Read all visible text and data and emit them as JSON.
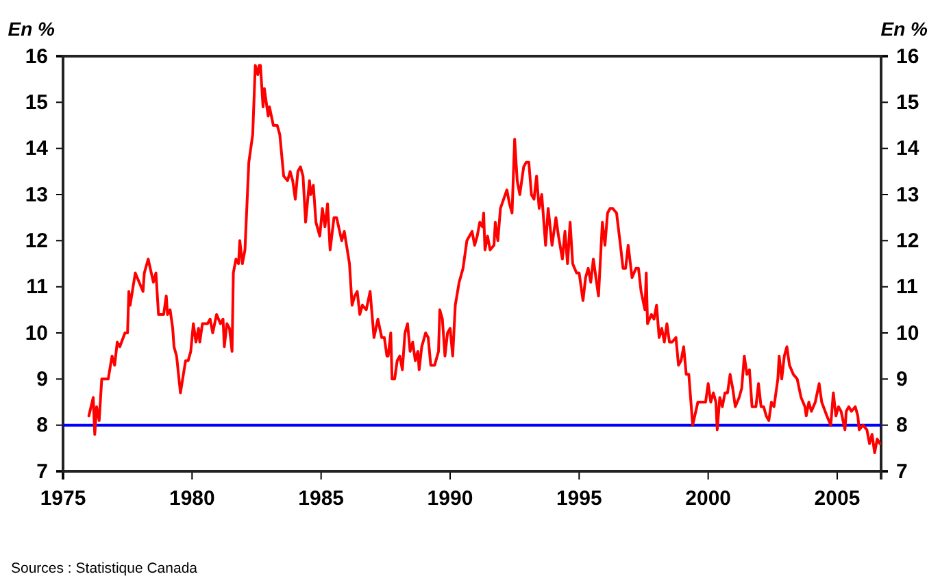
{
  "chart_data": {
    "type": "line",
    "ylabel": "En %",
    "y2label": "En %",
    "xlim": [
      1975,
      2006.7
    ],
    "xticks": [
      1975,
      1980,
      1985,
      1990,
      1995,
      2000,
      2005
    ],
    "ylim": [
      7,
      16
    ],
    "yticks": [
      7,
      8,
      9,
      10,
      11,
      12,
      13,
      14,
      15,
      16
    ],
    "y2lim": [
      7,
      16
    ],
    "y2ticks": [
      7,
      8,
      9,
      10,
      11,
      12,
      13,
      14,
      15,
      16
    ],
    "marker": "none",
    "line_style": "solid",
    "ref_lines": [
      {
        "axis": "y",
        "value": 8,
        "label": null,
        "color": "#0000ff"
      }
    ],
    "annotations": [
      "Sources : Statistique Canada"
    ],
    "series": [
      {
        "color": "#ff0000",
        "x": [
          1976.0,
          1976.17,
          1976.23,
          1976.3,
          1976.4,
          1976.5,
          1976.75,
          1976.9,
          1977.0,
          1977.1,
          1977.2,
          1977.4,
          1977.5,
          1977.55,
          1977.6,
          1977.8,
          1978.1,
          1978.15,
          1978.3,
          1978.5,
          1978.6,
          1978.7,
          1978.9,
          1979.0,
          1979.05,
          1979.15,
          1979.25,
          1979.3,
          1979.4,
          1979.55,
          1979.75,
          1979.85,
          1979.95,
          1980.05,
          1980.15,
          1980.25,
          1980.3,
          1980.4,
          1980.6,
          1980.7,
          1980.8,
          1980.95,
          1981.1,
          1981.2,
          1981.25,
          1981.35,
          1981.45,
          1981.55,
          1981.6,
          1981.7,
          1981.8,
          1981.85,
          1981.95,
          1982.05,
          1982.2,
          1982.35,
          1982.45,
          1982.55,
          1982.6,
          1982.65,
          1982.75,
          1982.8,
          1982.95,
          1983.0,
          1983.15,
          1983.3,
          1983.4,
          1983.55,
          1983.7,
          1983.8,
          1983.9,
          1984.0,
          1984.1,
          1984.2,
          1984.3,
          1984.4,
          1984.55,
          1984.6,
          1984.7,
          1984.8,
          1984.95,
          1985.05,
          1985.15,
          1985.25,
          1985.35,
          1985.5,
          1985.6,
          1985.8,
          1985.9,
          1986.1,
          1986.2,
          1986.3,
          1986.4,
          1986.5,
          1986.6,
          1986.75,
          1986.9,
          1987.05,
          1987.2,
          1987.35,
          1987.45,
          1987.55,
          1987.6,
          1987.7,
          1987.75,
          1987.85,
          1987.95,
          1988.05,
          1988.15,
          1988.25,
          1988.35,
          1988.45,
          1988.55,
          1988.65,
          1988.75,
          1988.8,
          1988.9,
          1989.05,
          1989.15,
          1989.25,
          1989.4,
          1989.55,
          1989.6,
          1989.7,
          1989.8,
          1989.9,
          1990.0,
          1990.1,
          1990.2,
          1990.35,
          1990.5,
          1990.65,
          1990.75,
          1990.85,
          1990.95,
          1991.05,
          1991.15,
          1991.25,
          1991.3,
          1991.35,
          1991.45,
          1991.55,
          1991.7,
          1991.75,
          1991.85,
          1991.95,
          1992.2,
          1992.3,
          1992.4,
          1992.5,
          1992.6,
          1992.7,
          1992.85,
          1992.95,
          1993.05,
          1993.15,
          1993.25,
          1993.35,
          1993.45,
          1993.55,
          1993.7,
          1993.8,
          1993.95,
          1994.1,
          1994.2,
          1994.35,
          1994.45,
          1994.55,
          1994.65,
          1994.75,
          1994.9,
          1995.0,
          1995.15,
          1995.25,
          1995.35,
          1995.45,
          1995.55,
          1995.75,
          1995.9,
          1996.0,
          1996.1,
          1996.2,
          1996.3,
          1996.45,
          1996.6,
          1996.7,
          1996.8,
          1996.9,
          1997.05,
          1997.2,
          1997.3,
          1997.4,
          1997.55,
          1997.6,
          1997.65,
          1997.8,
          1997.9,
          1998.0,
          1998.1,
          1998.2,
          1998.3,
          1998.4,
          1998.5,
          1998.6,
          1998.75,
          1998.85,
          1998.95,
          1999.05,
          1999.15,
          1999.25,
          1999.4,
          1999.6,
          1999.75,
          1999.9,
          2000.0,
          2000.1,
          2000.2,
          2000.3,
          2000.35,
          2000.45,
          2000.55,
          2000.65,
          2000.75,
          2000.85,
          2000.95,
          2001.05,
          2001.2,
          2001.3,
          2001.4,
          2001.5,
          2001.6,
          2001.7,
          2001.85,
          2001.95,
          2002.05,
          2002.15,
          2002.25,
          2002.35,
          2002.45,
          2002.55,
          2002.7,
          2002.75,
          2002.85,
          2002.95,
          2003.05,
          2003.15,
          2003.3,
          2003.45,
          2003.6,
          2003.75,
          2003.8,
          2003.9,
          2004.0,
          2004.15,
          2004.3,
          2004.4,
          2004.6,
          2004.75,
          2004.85,
          2004.95,
          2005.05,
          2005.15,
          2005.3,
          2005.35,
          2005.45,
          2005.55,
          2005.7,
          2005.8,
          2005.85,
          2006.0,
          2006.15,
          2006.25,
          2006.35,
          2006.45,
          2006.55,
          2006.65
        ],
        "values": [
          8.2,
          8.6,
          7.8,
          8.4,
          8.1,
          9.0,
          9.0,
          9.5,
          9.3,
          9.8,
          9.7,
          10.0,
          10.0,
          10.9,
          10.6,
          11.3,
          10.9,
          11.3,
          11.6,
          11.1,
          11.3,
          10.4,
          10.4,
          10.8,
          10.4,
          10.5,
          10.1,
          9.7,
          9.5,
          8.7,
          9.4,
          9.4,
          9.6,
          10.2,
          9.8,
          10.1,
          9.8,
          10.2,
          10.2,
          10.3,
          10.0,
          10.4,
          10.2,
          10.3,
          9.7,
          10.2,
          10.1,
          9.6,
          11.3,
          11.6,
          11.5,
          12.0,
          11.5,
          11.8,
          13.7,
          14.3,
          15.8,
          15.6,
          15.8,
          15.8,
          14.9,
          15.3,
          14.7,
          14.9,
          14.5,
          14.5,
          14.3,
          13.4,
          13.3,
          13.5,
          13.3,
          12.9,
          13.5,
          13.6,
          13.4,
          12.4,
          13.3,
          13.0,
          13.2,
          12.4,
          12.1,
          12.7,
          12.3,
          12.8,
          11.8,
          12.5,
          12.5,
          12.0,
          12.2,
          11.5,
          10.6,
          10.8,
          10.9,
          10.4,
          10.6,
          10.5,
          10.9,
          9.9,
          10.3,
          9.9,
          9.9,
          9.5,
          9.5,
          10.0,
          9.0,
          9.0,
          9.4,
          9.5,
          9.2,
          10.0,
          10.2,
          9.6,
          9.8,
          9.4,
          9.6,
          9.2,
          9.7,
          10.0,
          9.9,
          9.3,
          9.3,
          9.6,
          10.5,
          10.3,
          9.5,
          10.0,
          10.1,
          9.5,
          10.6,
          11.1,
          11.4,
          12.0,
          12.1,
          12.2,
          11.9,
          12.1,
          12.4,
          12.3,
          12.6,
          11.8,
          12.1,
          11.8,
          11.9,
          12.4,
          12.0,
          12.7,
          13.1,
          12.8,
          12.6,
          14.2,
          13.3,
          13.0,
          13.6,
          13.7,
          13.7,
          13.0,
          12.9,
          13.4,
          12.7,
          13.0,
          11.9,
          12.7,
          11.9,
          12.5,
          12.1,
          11.6,
          12.2,
          11.5,
          12.4,
          11.5,
          11.3,
          11.3,
          10.7,
          11.2,
          11.4,
          11.1,
          11.6,
          10.8,
          12.4,
          11.9,
          12.6,
          12.7,
          12.7,
          12.6,
          11.9,
          11.4,
          11.4,
          11.9,
          11.2,
          11.4,
          11.4,
          10.9,
          10.5,
          11.3,
          10.2,
          10.4,
          10.3,
          10.6,
          9.9,
          10.1,
          9.8,
          10.2,
          9.8,
          9.8,
          9.9,
          9.3,
          9.4,
          9.7,
          9.1,
          9.1,
          8.0,
          8.5,
          8.5,
          8.5,
          8.9,
          8.5,
          8.7,
          8.5,
          7.9,
          8.6,
          8.4,
          8.7,
          8.7,
          9.1,
          8.8,
          8.4,
          8.6,
          8.8,
          9.5,
          9.1,
          9.2,
          8.4,
          8.4,
          8.9,
          8.4,
          8.4,
          8.2,
          8.1,
          8.5,
          8.4,
          9.0,
          9.5,
          9.0,
          9.5,
          9.7,
          9.3,
          9.1,
          9.0,
          8.6,
          8.4,
          8.2,
          8.5,
          8.3,
          8.5,
          8.9,
          8.5,
          8.2,
          8.0,
          8.7,
          8.2,
          8.4,
          8.3,
          7.9,
          8.3,
          8.4,
          8.3,
          8.4,
          8.2,
          7.9,
          8.0,
          7.9,
          7.6,
          7.8,
          7.4,
          7.7,
          7.6
        ]
      }
    ]
  }
}
